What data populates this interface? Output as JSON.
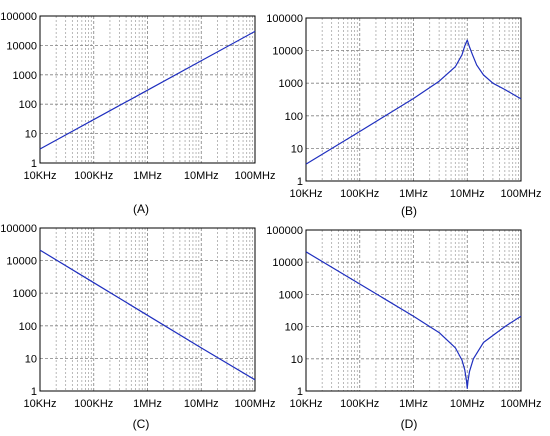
{
  "chart_data": [
    {
      "type": "line",
      "caption": "(A)",
      "x_scale": "log",
      "y_scale": "log",
      "xlim": [
        10000,
        100000000
      ],
      "ylim": [
        1,
        100000
      ],
      "x_ticks": [
        {
          "value": 10000,
          "label": "10KHz"
        },
        {
          "value": 100000,
          "label": "100KHz"
        },
        {
          "value": 1000000,
          "label": "1MHz"
        },
        {
          "value": 10000000,
          "label": "10MHz"
        },
        {
          "value": 100000000,
          "label": "100MHz"
        }
      ],
      "y_ticks": [
        {
          "value": 1,
          "label": "1"
        },
        {
          "value": 10,
          "label": "10"
        },
        {
          "value": 100,
          "label": "100"
        },
        {
          "value": 1000,
          "label": "1000"
        },
        {
          "value": 10000,
          "label": "10000"
        },
        {
          "value": 100000,
          "label": "100000"
        }
      ],
      "grid": true,
      "series": [
        {
          "color": "#1f2fbf",
          "x": [
            10000,
            100000,
            1000000,
            10000000,
            100000000
          ],
          "y": [
            3,
            30,
            300,
            3000,
            30000
          ]
        }
      ]
    },
    {
      "type": "line",
      "caption": "(B)",
      "x_scale": "log",
      "y_scale": "log",
      "xlim": [
        10000,
        100000000
      ],
      "ylim": [
        1,
        100000
      ],
      "x_ticks": [
        {
          "value": 10000,
          "label": "10KHz"
        },
        {
          "value": 100000,
          "label": "100KHz"
        },
        {
          "value": 1000000,
          "label": "1MHz"
        },
        {
          "value": 10000000,
          "label": "10MHz"
        },
        {
          "value": 100000000,
          "label": "100MHz"
        }
      ],
      "y_ticks": [
        {
          "value": 1,
          "label": "1"
        },
        {
          "value": 10,
          "label": "10"
        },
        {
          "value": 100,
          "label": "100"
        },
        {
          "value": 1000,
          "label": "1000"
        },
        {
          "value": 10000,
          "label": "10000"
        },
        {
          "value": 100000,
          "label": "100000"
        }
      ],
      "grid": true,
      "series": [
        {
          "color": "#1f2fbf",
          "x": [
            10000,
            100000,
            1000000,
            3000000,
            6000000,
            8000000,
            9000000,
            10000000,
            11000000,
            12500000,
            15000000,
            20000000,
            30000000,
            50000000,
            100000000
          ],
          "y": [
            3.3,
            33,
            340,
            1150,
            3200,
            7500,
            14000,
            21000,
            13000,
            7500,
            3600,
            1800,
            1000,
            640,
            330
          ]
        }
      ]
    },
    {
      "type": "line",
      "caption": "(C)",
      "x_scale": "log",
      "y_scale": "log",
      "xlim": [
        10000,
        100000000
      ],
      "ylim": [
        1,
        100000
      ],
      "x_ticks": [
        {
          "value": 10000,
          "label": "10KHz"
        },
        {
          "value": 100000,
          "label": "100KHz"
        },
        {
          "value": 1000000,
          "label": "1MHz"
        },
        {
          "value": 10000000,
          "label": "10MHz"
        },
        {
          "value": 100000000,
          "label": "100MHz"
        }
      ],
      "y_ticks": [
        {
          "value": 1,
          "label": "1"
        },
        {
          "value": 10,
          "label": "10"
        },
        {
          "value": 100,
          "label": "100"
        },
        {
          "value": 1000,
          "label": "1000"
        },
        {
          "value": 10000,
          "label": "10000"
        },
        {
          "value": 100000,
          "label": "100000"
        }
      ],
      "grid": true,
      "series": [
        {
          "color": "#1f2fbf",
          "x": [
            10000,
            100000,
            1000000,
            10000000,
            100000000
          ],
          "y": [
            21000,
            2100,
            210,
            21,
            2.2
          ]
        }
      ]
    },
    {
      "type": "line",
      "caption": "(D)",
      "x_scale": "log",
      "y_scale": "log",
      "xlim": [
        10000,
        100000000
      ],
      "ylim": [
        1,
        100000
      ],
      "x_ticks": [
        {
          "value": 10000,
          "label": "10KHz"
        },
        {
          "value": 100000,
          "label": "100KHz"
        },
        {
          "value": 1000000,
          "label": "1MHz"
        },
        {
          "value": 10000000,
          "label": "10MHz"
        },
        {
          "value": 100000000,
          "label": "100MHz"
        }
      ],
      "y_ticks": [
        {
          "value": 1,
          "label": "1"
        },
        {
          "value": 10,
          "label": "10"
        },
        {
          "value": 100,
          "label": "100"
        },
        {
          "value": 1000,
          "label": "1000"
        },
        {
          "value": 10000,
          "label": "10000"
        },
        {
          "value": 100000,
          "label": "100000"
        }
      ],
      "grid": true,
      "series": [
        {
          "color": "#1f2fbf",
          "x": [
            10000,
            100000,
            1000000,
            3000000,
            6000000,
            8000000,
            9000000,
            9700000,
            10000000,
            10300000,
            11000000,
            13000000,
            20000000,
            50000000,
            100000000
          ],
          "y": [
            21000,
            2100,
            210,
            65,
            22,
            9,
            4.5,
            2,
            1.2,
            2,
            4,
            10,
            32,
            100,
            210
          ]
        }
      ]
    }
  ]
}
